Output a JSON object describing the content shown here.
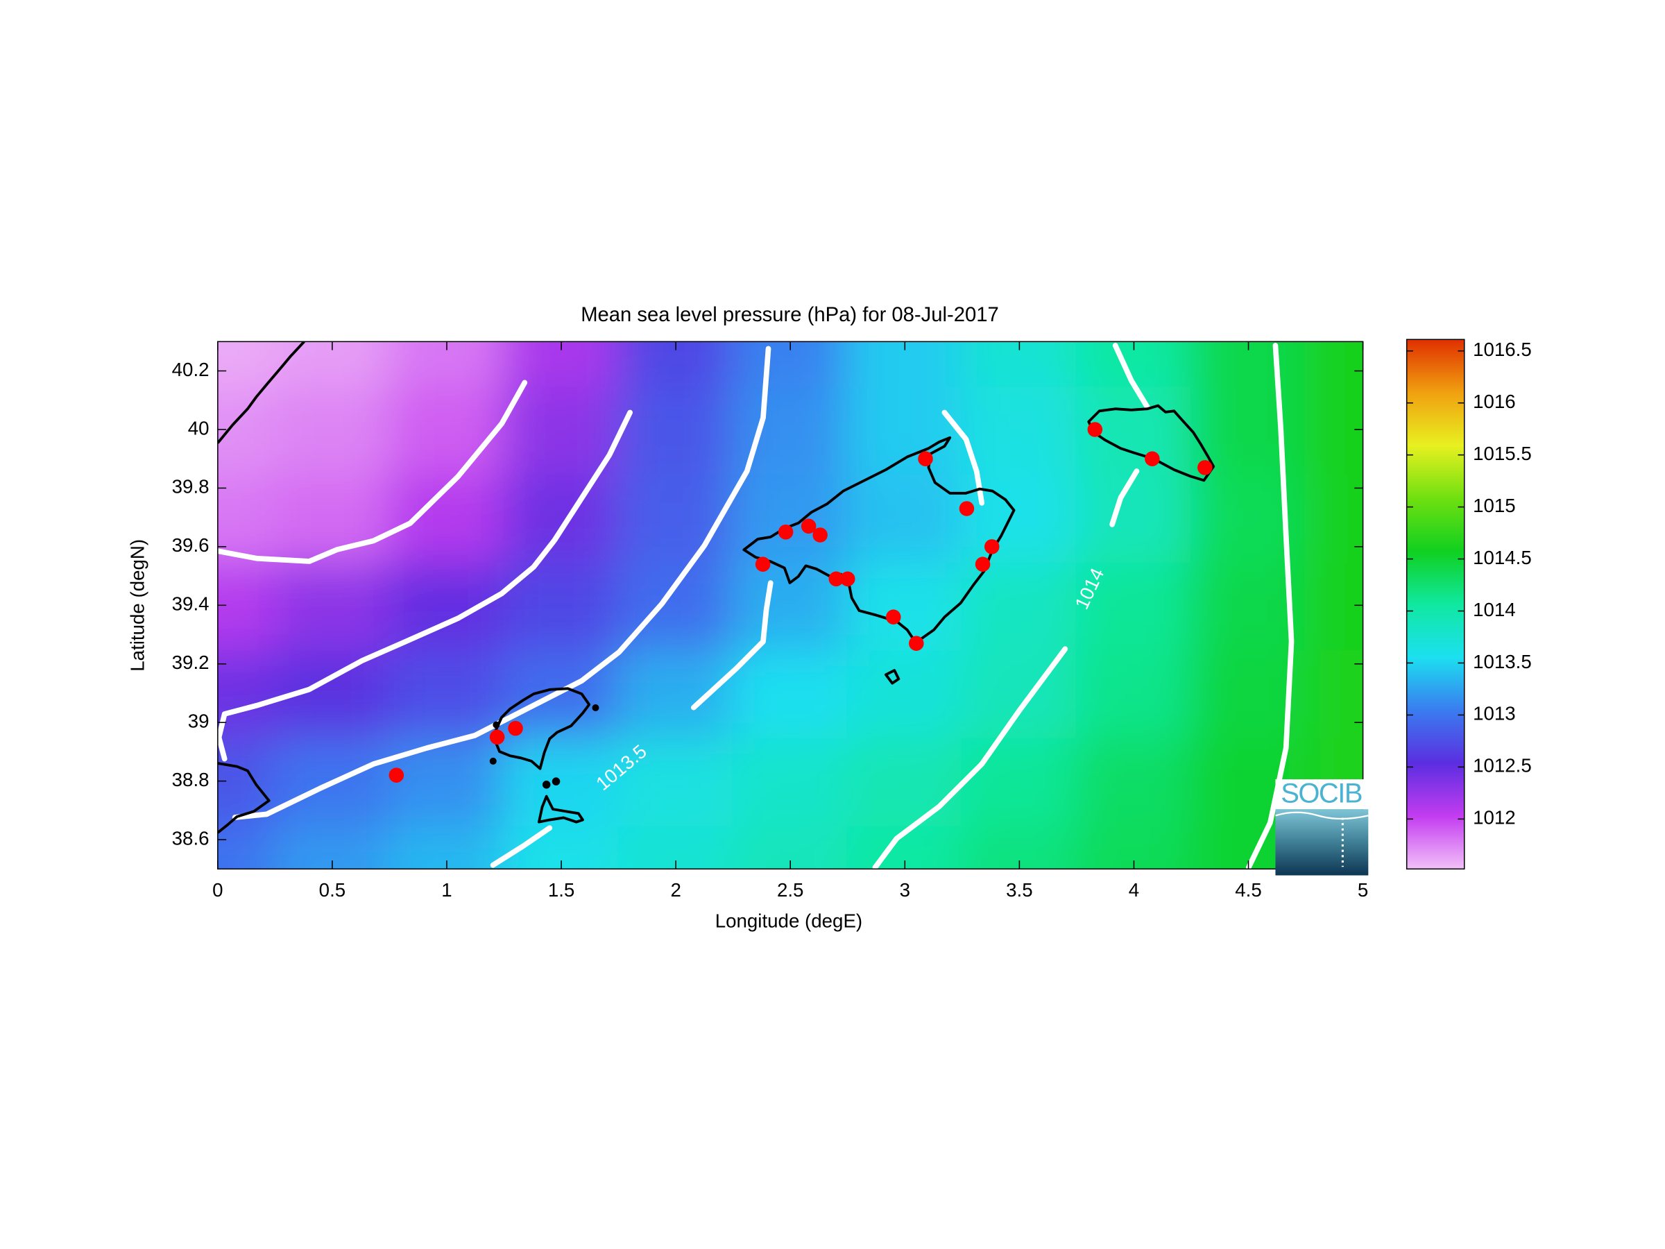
{
  "chart_data": {
    "type": "map",
    "title": "Mean sea level pressure (hPa) for 08-Jul-2017",
    "xlabel": "Longitude (degE)",
    "ylabel": "Latitude (degN)",
    "xlim": [
      0,
      5
    ],
    "ylim": [
      38.5,
      40.3
    ],
    "xticks": [
      0,
      0.5,
      1,
      1.5,
      2,
      2.5,
      3,
      3.5,
      4,
      4.5,
      5
    ],
    "yticks": [
      38.6,
      38.8,
      39,
      39.2,
      39.4,
      39.6,
      39.8,
      40,
      40.2
    ],
    "x": [
      0,
      0.5,
      1,
      1.5,
      2,
      2.5,
      3,
      3.5,
      4,
      4.5,
      5
    ],
    "y": [
      38.5,
      38.8,
      39.1,
      39.4,
      39.7,
      40.0,
      40.3
    ],
    "z": [
      [
        1013.0,
        1013.2,
        1013.35,
        1013.6,
        1013.75,
        1013.9,
        1014.05,
        1014.2,
        1014.35,
        1014.5,
        1014.65
      ],
      [
        1012.8,
        1013.0,
        1013.15,
        1013.5,
        1013.65,
        1013.8,
        1013.95,
        1014.1,
        1014.3,
        1014.5,
        1014.65
      ],
      [
        1012.45,
        1012.55,
        1012.75,
        1012.95,
        1013.3,
        1013.55,
        1013.7,
        1013.9,
        1014.15,
        1014.45,
        1014.65
      ],
      [
        1012.1,
        1012.3,
        1012.5,
        1012.7,
        1012.95,
        1013.3,
        1013.6,
        1013.85,
        1014.1,
        1014.4,
        1014.6
      ],
      [
        1011.8,
        1011.85,
        1012.1,
        1012.45,
        1012.85,
        1013.2,
        1013.4,
        1013.6,
        1013.9,
        1014.35,
        1014.6
      ],
      [
        1011.7,
        1011.75,
        1011.9,
        1012.3,
        1012.8,
        1013.15,
        1013.45,
        1013.65,
        1013.95,
        1014.4,
        1014.6
      ],
      [
        1011.6,
        1011.65,
        1011.8,
        1012.15,
        1012.7,
        1013.07,
        1013.45,
        1013.75,
        1014.05,
        1014.4,
        1014.6
      ]
    ],
    "colormap": [
      "#f2c0f8",
      "#c33cf0",
      "#5b2ee0",
      "#3a7cf0",
      "#1ce0f0",
      "#10e8a0",
      "#10d020",
      "#70e010",
      "#e8f020",
      "#f0a010",
      "#e03000"
    ],
    "clim": [
      1011.52,
      1016.61
    ],
    "cticks": [
      1012,
      1012.5,
      1013,
      1013.5,
      1014,
      1014.5,
      1015,
      1015.5,
      1016,
      1016.5
    ],
    "contour_color": "#ffffff",
    "contours": [
      {
        "lon": [
          0,
          0.17,
          0.4,
          0.52,
          0.68,
          0.84,
          1.05,
          1.24,
          1.34
        ],
        "lat": [
          39.585,
          39.56,
          39.55,
          39.59,
          39.62,
          39.68,
          39.84,
          40.02,
          40.16
        ]
      },
      {
        "lon": [
          0.03,
          0.005,
          0.03,
          0.17,
          0.4,
          0.63,
          0.82,
          1.05,
          1.24,
          1.38,
          1.47,
          1.59,
          1.71,
          1.8
        ],
        "lat": [
          38.876,
          38.949,
          39.029,
          39.058,
          39.113,
          39.211,
          39.276,
          39.356,
          39.44,
          39.531,
          39.622,
          39.767,
          39.913,
          40.058
        ]
      },
      {
        "lon": [
          0.075,
          0.214,
          0.447,
          0.68,
          0.913,
          1.123,
          1.333,
          1.589,
          1.752,
          1.938,
          2.125,
          2.311,
          2.381,
          2.404
        ],
        "lat": [
          38.676,
          38.687,
          38.775,
          38.858,
          38.913,
          38.956,
          39.04,
          39.142,
          39.24,
          39.404,
          39.604,
          39.858,
          40.04,
          40.276
        ]
      },
      {
        "lon": [
          1.202,
          1.333,
          1.449,
          null,
          2.078,
          2.265,
          2.381,
          2.395,
          2.414
        ],
        "lat": [
          38.513,
          38.578,
          38.64,
          null,
          39.051,
          39.185,
          39.276,
          39.385,
          39.476
        ]
      },
      {
        "lon": [
          3.173,
          3.267,
          3.313,
          3.336
        ],
        "lat": [
          40.058,
          39.967,
          39.858,
          39.749
        ]
      },
      {
        "lon": [
          2.87,
          2.964,
          3.15,
          3.336,
          3.499,
          3.7
        ],
        "lat": [
          38.505,
          38.604,
          38.713,
          38.858,
          39.04,
          39.251
        ]
      },
      {
        "lon": [
          3.905,
          3.942,
          4.012,
          null,
          4.059,
          3.989,
          3.919
        ],
        "lat": [
          39.676,
          39.767,
          39.858,
          null,
          40.076,
          40.167,
          40.287
        ]
      },
      {
        "lon": [
          4.501,
          4.595,
          4.664,
          4.688,
          4.664,
          4.641,
          4.618
        ],
        "lat": [
          38.505,
          38.658,
          38.913,
          39.276,
          39.64,
          40.004,
          40.287
        ]
      }
    ],
    "contour_labels": [
      1013.5,
      1014
    ],
    "stations": {
      "color": "#ff0000",
      "lon": [
        0.78,
        1.22,
        1.3,
        2.38,
        2.48,
        2.58,
        2.63,
        2.7,
        2.75,
        2.95,
        3.05,
        3.09,
        3.27,
        3.34,
        3.38,
        3.83,
        4.08,
        4.31
      ],
      "lat": [
        38.82,
        38.95,
        38.98,
        39.54,
        39.65,
        39.67,
        39.64,
        39.49,
        39.49,
        39.36,
        39.27,
        39.9,
        39.73,
        39.54,
        39.6,
        40.0,
        39.9,
        39.87
      ]
    },
    "logo": "SOCIB"
  }
}
